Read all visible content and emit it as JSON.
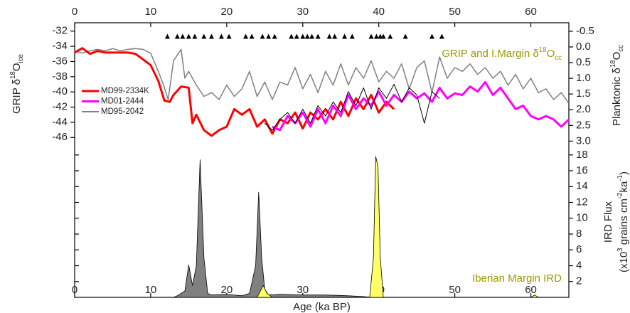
{
  "chart_data": [
    {
      "type": "line",
      "y_label": [
        "GRIP δ",
        "18",
        "O",
        "ice"
      ],
      "y2_label": [
        "Planktonic δ",
        "18",
        "O",
        "cc"
      ],
      "annotation": [
        "GRIP and I.Margin δ",
        "18",
        "O",
        "cc"
      ],
      "annotation_color": "#999900",
      "xlim": [
        0,
        65
      ],
      "xticks": [
        0,
        10,
        20,
        30,
        40,
        50,
        60
      ],
      "ylim": [
        -47.1,
        -30.9
      ],
      "yticks": [
        -32,
        -34,
        -36,
        -38,
        -40,
        -42,
        -44,
        -46
      ],
      "y2lim": [
        3.15,
        -0.77
      ],
      "y2ticks": [
        {
          "value": -0.5,
          "label": "-0.5"
        },
        {
          "value": 0,
          "label": "0.0"
        },
        0.5,
        {
          "value": 1,
          "label": "1.0"
        },
        1.5,
        {
          "value": 2,
          "label": "2.0"
        },
        2.5,
        {
          "value": 3,
          "label": "3.0"
        }
      ],
      "markers_x": [
        12.2,
        13.5,
        14.2,
        15,
        15.8,
        17,
        18,
        19.3,
        20.3,
        22.5,
        23.3,
        24.7,
        25.5,
        26.3,
        28.5,
        29.2,
        30,
        30.6,
        31.2,
        32,
        33.5,
        34.2,
        35.5,
        36.5,
        39,
        39.7,
        40.2,
        40.6,
        41.5,
        43.5,
        47,
        48.3
      ],
      "legend": "left",
      "series": [
        {
          "color": "#808080",
          "width": 1.5,
          "x": [
            0,
            1,
            2,
            3,
            4,
            5,
            6,
            7,
            8,
            9,
            10,
            11,
            11.7,
            12.3,
            13,
            14,
            14.5,
            15,
            15.5,
            16,
            17,
            18,
            19,
            20,
            21,
            22,
            23,
            24,
            25,
            26,
            27,
            28,
            29,
            30,
            31,
            32,
            33,
            34,
            35,
            36,
            37,
            38,
            39,
            40,
            41,
            42,
            43,
            44,
            45,
            46,
            47,
            48,
            49,
            50,
            51,
            52,
            53,
            54,
            55,
            56,
            57,
            58,
            59,
            60,
            61,
            62,
            63,
            64,
            65
          ],
          "values": [
            -34.6,
            -34.9,
            -34.6,
            -34.4,
            -34.6,
            -34.3,
            -34.6,
            -34.4,
            -34.3,
            -34.4,
            -34.9,
            -37.3,
            -39.1,
            -41.0,
            -35.9,
            -34.4,
            -38.2,
            -37.3,
            -38.2,
            -39.1,
            -40.6,
            -40.1,
            -41.0,
            -39.1,
            -40.6,
            -39.6,
            -37.3,
            -40.6,
            -38.7,
            -41.0,
            -38.7,
            -39.1,
            -36.8,
            -39.6,
            -37.7,
            -40.1,
            -37.3,
            -39.1,
            -36.3,
            -39.1,
            -36.8,
            -38.2,
            -35.9,
            -38.7,
            -37.3,
            -38.2,
            -36.3,
            -39.6,
            -36.8,
            -35.9,
            -40.1,
            -35.4,
            -38.2,
            -36.8,
            -37.3,
            -36.3,
            -37.7,
            -36.8,
            -38.2,
            -37.3,
            -39.1,
            -37.7,
            -39.6,
            -38.2,
            -40.1,
            -39.6,
            -41.0,
            -40.1,
            -41.5
          ]
        },
        {
          "name": "MD99-2334K",
          "color": "#ff0000",
          "width": 3,
          "axis": "y2",
          "x": [
            0,
            1,
            2,
            3,
            4,
            5,
            6,
            7,
            8,
            9,
            10,
            11,
            11.8,
            12.5,
            13,
            14,
            15,
            15.5,
            16,
            17,
            18,
            19,
            20,
            21,
            22,
            23,
            24,
            25,
            26,
            27,
            28,
            29,
            30,
            31,
            32,
            33,
            34,
            35,
            36,
            37,
            38,
            39,
            40,
            41,
            42
          ],
          "values": [
            0.18,
            0.04,
            0.22,
            0.13,
            0.18,
            0.18,
            0.18,
            0.18,
            0.22,
            0.4,
            0.58,
            1.08,
            1.71,
            1.75,
            1.53,
            1.26,
            1.3,
            2.43,
            2.16,
            2.65,
            2.83,
            2.65,
            2.54,
            1.98,
            2.16,
            1.98,
            2.54,
            2.31,
            2.76,
            2.31,
            2.43,
            2.09,
            2.6,
            2.09,
            2.31,
            1.98,
            2.31,
            1.75,
            2.2,
            1.64,
            1.98,
            1.53,
            2.09,
            1.75,
            1.98
          ]
        },
        {
          "name": "MD01-2444",
          "color": "#ff00ff",
          "width": 3,
          "axis": "y2",
          "x": [
            26,
            27,
            28,
            29,
            30,
            31,
            32,
            33,
            34,
            35,
            36,
            37,
            38,
            39,
            40,
            41,
            42,
            43,
            44,
            45,
            46,
            47,
            48,
            49,
            50,
            51,
            52,
            53,
            54,
            55,
            56,
            57,
            58,
            59,
            60,
            61,
            62,
            63,
            64,
            65
          ],
          "values": [
            2.54,
            2.65,
            2.2,
            2.43,
            2.09,
            2.54,
            1.98,
            2.43,
            1.87,
            2.2,
            1.53,
            1.98,
            1.64,
            1.87,
            1.42,
            1.87,
            1.53,
            1.75,
            1.42,
            1.64,
            1.48,
            1.75,
            1.3,
            1.64,
            1.48,
            1.53,
            1.26,
            1.42,
            1.12,
            1.53,
            1.3,
            1.64,
            1.98,
            1.87,
            2.2,
            2.31,
            2.2,
            2.31,
            2.54,
            2.31
          ]
        },
        {
          "name": "MD95-2042",
          "color": "#000000",
          "width": 1,
          "axis": "y2",
          "x": [
            25,
            26,
            27,
            28,
            29,
            30,
            31,
            32,
            33,
            34,
            35,
            36,
            37,
            38,
            39,
            40,
            41,
            42,
            43,
            44,
            45,
            46,
            47,
            48
          ],
          "values": [
            2.43,
            2.65,
            2.31,
            2.09,
            2.43,
            1.98,
            2.43,
            1.87,
            2.2,
            1.75,
            2.09,
            1.42,
            1.87,
            1.3,
            1.98,
            1.3,
            1.64,
            1.19,
            1.75,
            1.3,
            1.53,
            2.43,
            1.42,
            1.64
          ]
        }
      ]
    },
    {
      "type": "area",
      "x_label": "Age (ka BP)",
      "y_label": [
        "IRD Flux"
      ],
      "y_label2": [
        "(x10",
        "3",
        " grains cm",
        "-2",
        "ka",
        "-1",
        ")"
      ],
      "annotation": "Iberian Margin IRD",
      "annotation_color": "#999900",
      "xlim": [
        0,
        65
      ],
      "xticks": [
        0,
        10,
        20,
        30,
        40,
        50,
        60
      ],
      "ylim": [
        0,
        18.7
      ],
      "yticks": [
        2,
        4,
        6,
        8,
        10,
        12,
        14,
        16,
        18
      ],
      "series": [
        {
          "color": "#808080",
          "x": [
            0,
            13,
            13.5,
            14.5,
            15,
            15.5,
            16,
            16.5,
            17,
            17.5,
            18,
            20,
            22,
            23,
            23.8,
            24.2,
            24.6,
            25,
            25.5,
            27,
            30,
            33,
            36,
            38,
            39,
            65
          ],
          "values": [
            0,
            0,
            0.2,
            0.8,
            4.1,
            1.5,
            4,
            17.4,
            5,
            0.5,
            0.3,
            0.4,
            0.2,
            0.5,
            4,
            13.3,
            5,
            1,
            0.3,
            0.4,
            0.3,
            0.3,
            0.2,
            0.1,
            0,
            0
          ]
        },
        {
          "color": "#ffff66",
          "x": [
            24,
            24.8,
            25.3,
            26,
            38.8,
            39.3,
            39.6,
            39.9,
            40.2,
            40.6,
            60,
            60.5,
            61
          ],
          "values": [
            0,
            1.5,
            0.5,
            0,
            0,
            5,
            17.8,
            16.5,
            5,
            0,
            0,
            0.3,
            0
          ]
        }
      ]
    }
  ]
}
